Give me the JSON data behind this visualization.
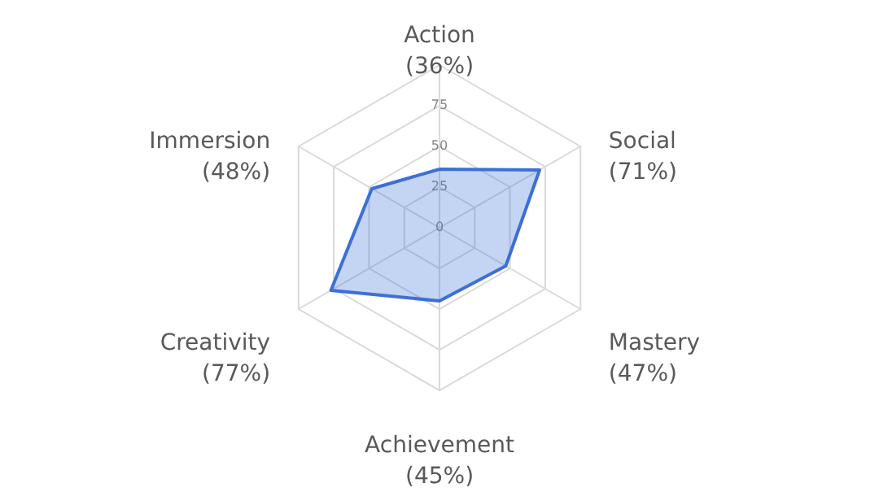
{
  "chart_data": {
    "type": "radar",
    "categories": [
      "Action\n(36%)",
      "Social\n(71%)",
      "Mastery\n(47%)",
      "Achievement\n(45%)",
      "Creativity\n(77%)",
      "Immersion\n(48%)"
    ],
    "series": [
      {
        "color": "#3d6fd6",
        "values": [
          36,
          71,
          47,
          45,
          77,
          48
        ]
      }
    ],
    "ylim": [
      0,
      100
    ],
    "yticks": [
      0,
      25,
      50,
      75
    ],
    "grid": true
  }
}
